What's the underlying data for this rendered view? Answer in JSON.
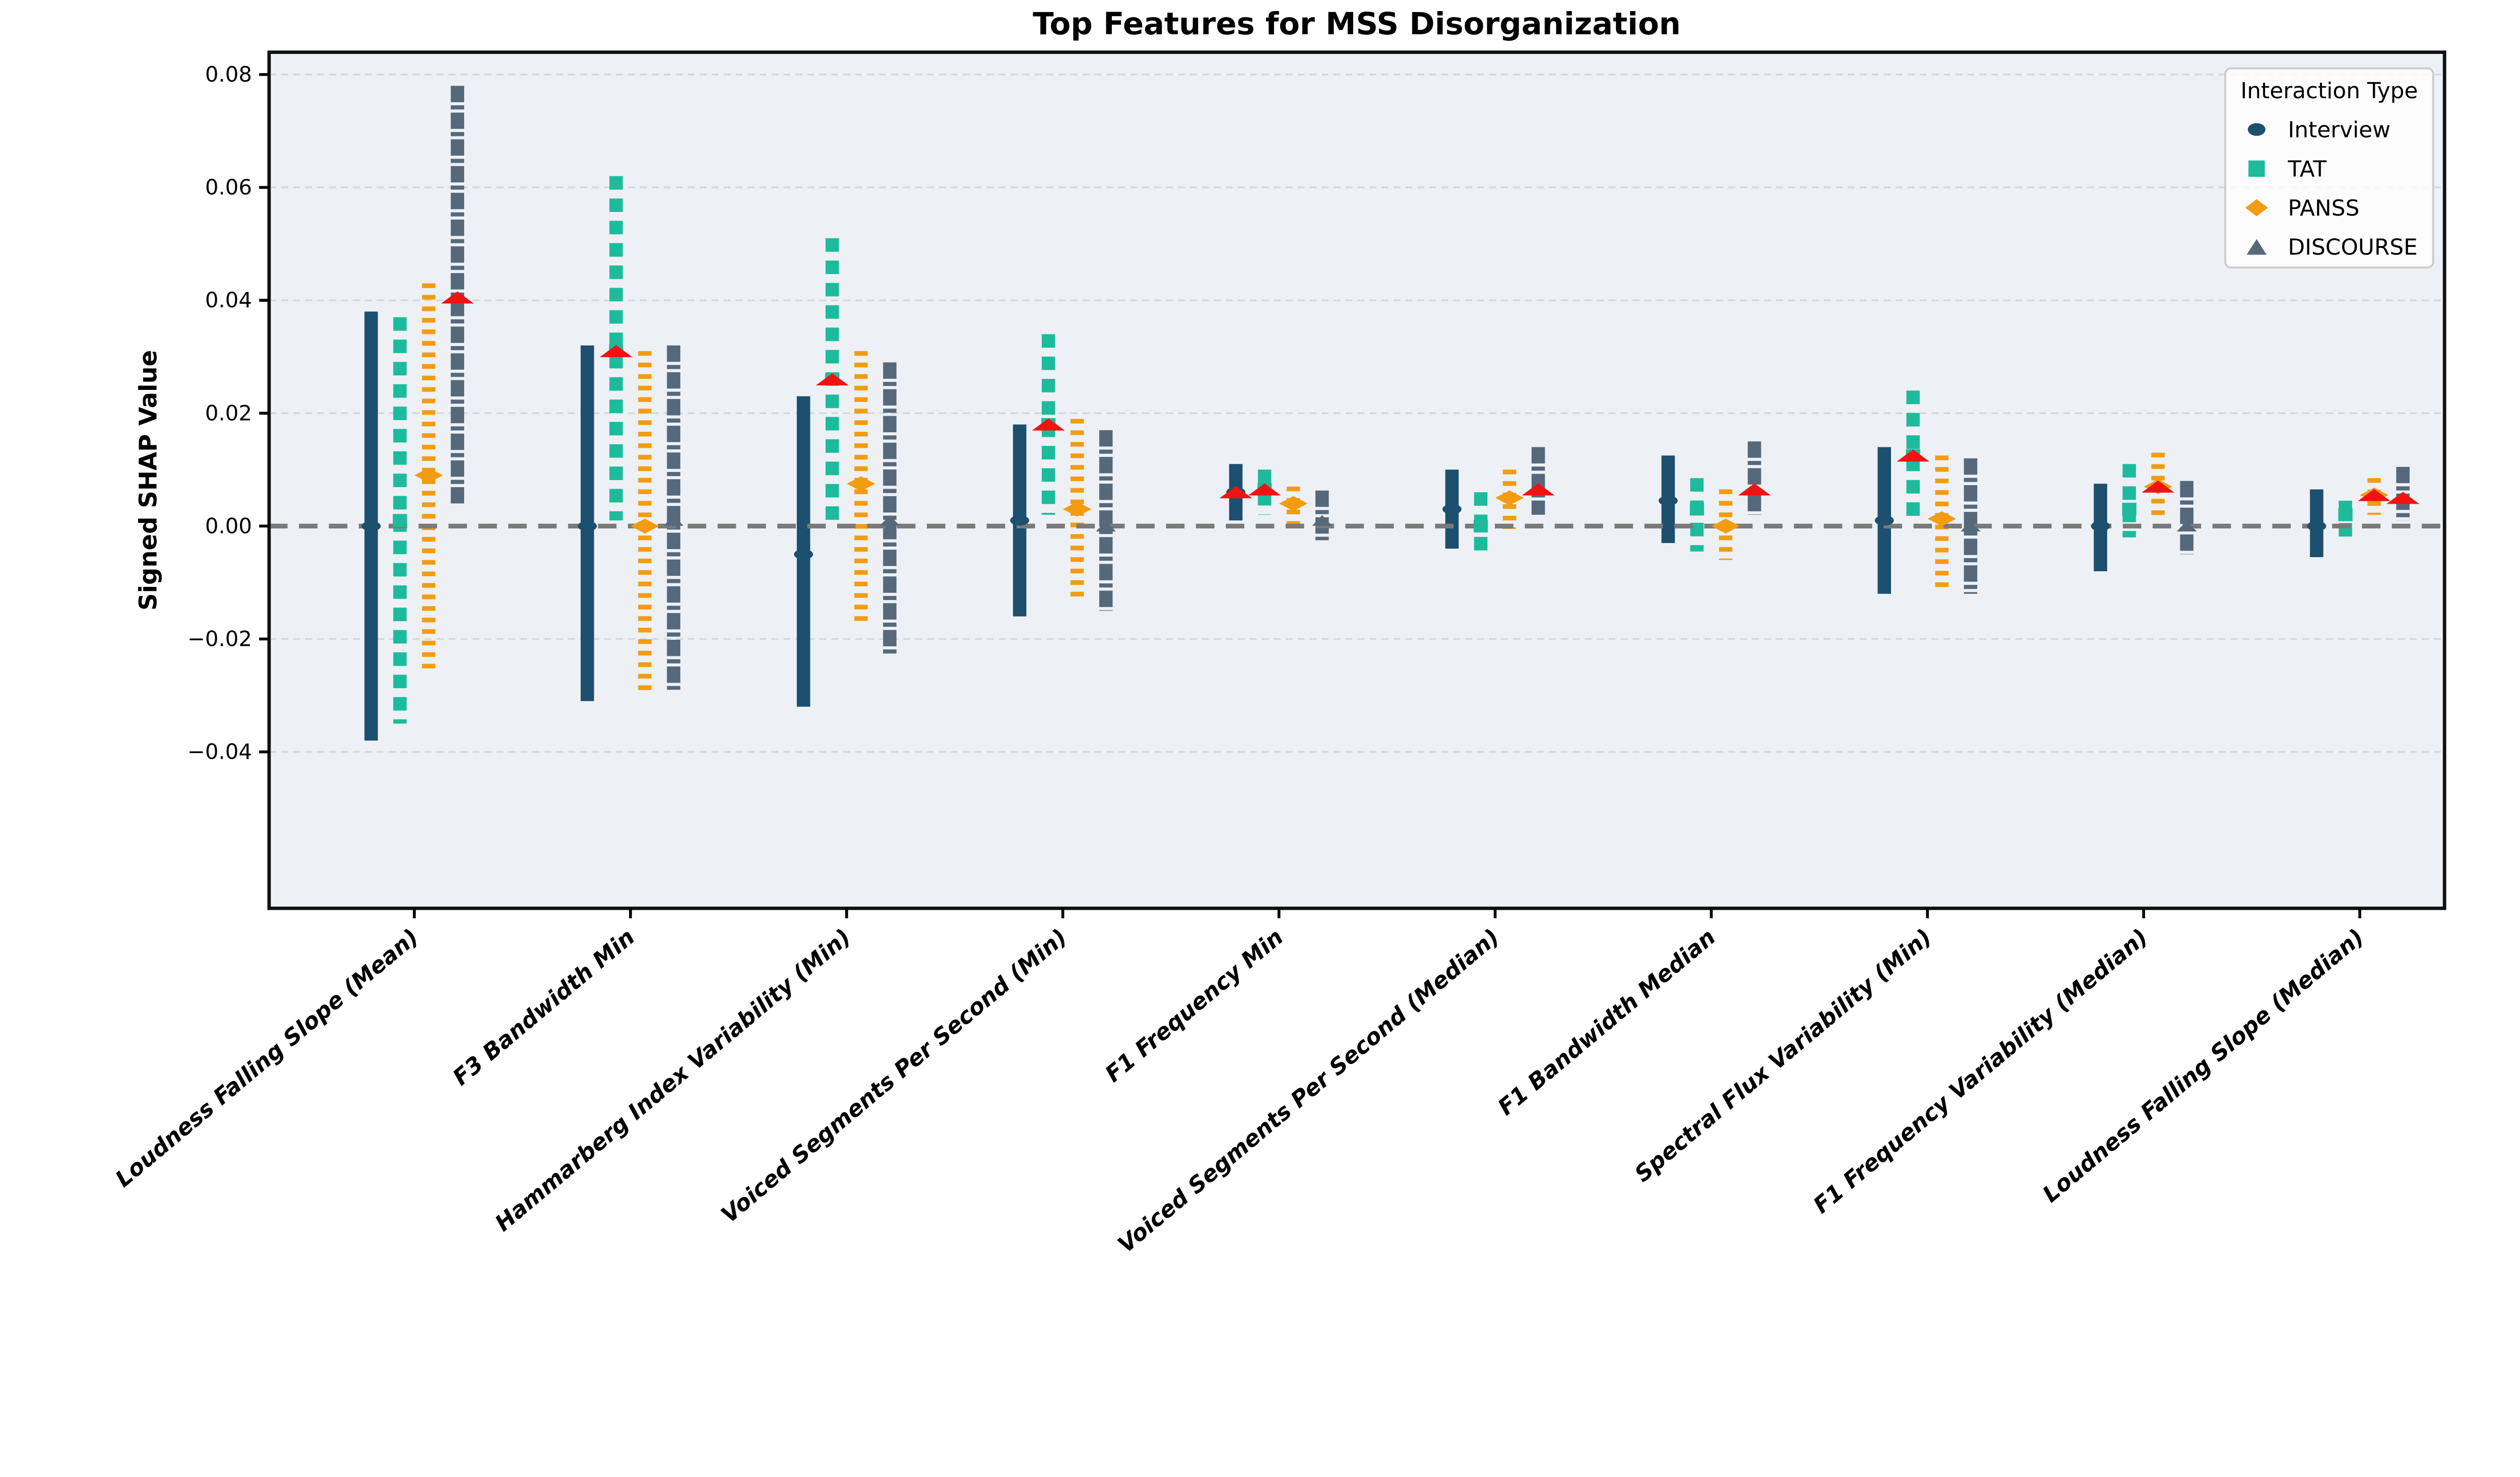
{
  "figure": {
    "title": "Top Features for MSS Disorganization",
    "ylabel": "Signed SHAP Value",
    "plot_background": "#edf1f5",
    "grid_color": "#d3d8dd",
    "zero_line_color": "#7a7a7a",
    "spine_color": "#111111"
  },
  "legend": {
    "title": "Interaction Type",
    "background": "rgba(255,255,255,0.8)",
    "border_color": "#cccccc",
    "entries": [
      {
        "label": "Interview",
        "marker": "circle",
        "color": "#1d4f6e"
      },
      {
        "label": "TAT",
        "marker": "square",
        "color": "#1dbb9c"
      },
      {
        "label": "PANSS",
        "marker": "diamond",
        "color": "#f39c12"
      },
      {
        "label": "DISCOURSE",
        "marker": "triangle",
        "color": "#56697b"
      }
    ]
  },
  "chart_data": {
    "type": "scatter",
    "subtype": "dodged-errorbar",
    "title": "Top Features for MSS Disorganization",
    "xlabel": "",
    "ylabel": "Signed SHAP Value",
    "ylim": [
      -0.0675,
      0.084
    ],
    "yticks": [
      0.08,
      0.06,
      0.04,
      0.02,
      0.0,
      -0.02,
      -0.04
    ],
    "ytick_labels": [
      "0.08",
      "0.06",
      "0.04",
      "0.02",
      "0.00",
      "−0.02",
      "−0.04"
    ],
    "grid": true,
    "zero_line": 0.0,
    "legend_position": "upper right",
    "significant_marker": {
      "shape": "triangle",
      "color": "#f01311",
      "meaning": "significant value (red triangle overlay)"
    },
    "categories": [
      "Loudness Falling Slope (Mean)",
      "F3 Bandwidth Min",
      "Hammarberg Index Variability (Min)",
      "Voiced Segments Per Second (Min)",
      "F1 Frequency Min",
      "Voiced Segments Per Second (Median)",
      "F1 Bandwidth Median",
      "Spectral Flux Variability (Min)",
      "F1 Frequency Variability (Median)",
      "Loudness Falling Slope (Median)"
    ],
    "series": [
      {
        "name": "Interview",
        "color": "#1d4f6e",
        "marker": "circle",
        "line_style": "solid",
        "points": [
          {
            "center": 0.0,
            "lo": -0.038,
            "hi": 0.038,
            "significant": false
          },
          {
            "center": 0.0,
            "lo": -0.031,
            "hi": 0.032,
            "significant": false
          },
          {
            "center": -0.005,
            "lo": -0.032,
            "hi": 0.023,
            "significant": false
          },
          {
            "center": 0.001,
            "lo": -0.016,
            "hi": 0.018,
            "significant": false
          },
          {
            "center": 0.006,
            "lo": 0.001,
            "hi": 0.011,
            "significant": true
          },
          {
            "center": 0.003,
            "lo": -0.004,
            "hi": 0.01,
            "significant": false
          },
          {
            "center": 0.0045,
            "lo": -0.003,
            "hi": 0.0125,
            "significant": false
          },
          {
            "center": 0.001,
            "lo": -0.012,
            "hi": 0.014,
            "significant": false
          },
          {
            "center": 0.0,
            "lo": -0.008,
            "hi": 0.0075,
            "significant": false
          },
          {
            "center": 0.0,
            "lo": -0.0055,
            "hi": 0.0065,
            "significant": false
          }
        ]
      },
      {
        "name": "TAT",
        "color": "#1dbb9c",
        "marker": "square",
        "line_style": "dashed",
        "points": [
          {
            "center": 0.001,
            "lo": -0.035,
            "hi": 0.037,
            "significant": false
          },
          {
            "center": 0.031,
            "lo": 0.001,
            "hi": 0.062,
            "significant": true
          },
          {
            "center": 0.026,
            "lo": 0.0,
            "hi": 0.051,
            "significant": true
          },
          {
            "center": 0.018,
            "lo": 0.002,
            "hi": 0.034,
            "significant": true
          },
          {
            "center": 0.0065,
            "lo": 0.002,
            "hi": 0.01,
            "significant": true
          },
          {
            "center": 0.0,
            "lo": -0.0055,
            "hi": 0.006,
            "significant": false
          },
          {
            "center": 0.003,
            "lo": -0.0045,
            "hi": 0.0085,
            "significant": false
          },
          {
            "center": 0.0125,
            "lo": 0.001,
            "hi": 0.024,
            "significant": true
          },
          {
            "center": 0.003,
            "lo": -0.002,
            "hi": 0.011,
            "significant": false
          },
          {
            "center": 0.002,
            "lo": -0.003,
            "hi": 0.0045,
            "significant": false
          }
        ]
      },
      {
        "name": "PANSS",
        "color": "#f39c12",
        "marker": "diamond",
        "line_style": "dotted",
        "points": [
          {
            "center": 0.009,
            "lo": -0.026,
            "hi": 0.043,
            "significant": false
          },
          {
            "center": 0.0,
            "lo": -0.03,
            "hi": 0.031,
            "significant": false
          },
          {
            "center": 0.0075,
            "lo": -0.018,
            "hi": 0.031,
            "significant": false
          },
          {
            "center": 0.003,
            "lo": -0.013,
            "hi": 0.019,
            "significant": false
          },
          {
            "center": 0.004,
            "lo": -0.001,
            "hi": 0.007,
            "significant": false
          },
          {
            "center": 0.005,
            "lo": -0.0005,
            "hi": 0.01,
            "significant": false
          },
          {
            "center": 0.0,
            "lo": -0.006,
            "hi": 0.0065,
            "significant": false
          },
          {
            "center": 0.0013,
            "lo": -0.011,
            "hi": 0.0125,
            "significant": false
          },
          {
            "center": 0.007,
            "lo": 0.001,
            "hi": 0.013,
            "significant": true
          },
          {
            "center": 0.0055,
            "lo": 0.002,
            "hi": 0.0085,
            "significant": true
          }
        ]
      },
      {
        "name": "DISCOURSE",
        "color": "#56697b",
        "marker": "triangle",
        "line_style": "dashdot",
        "points": [
          {
            "center": 0.0405,
            "lo": 0.004,
            "hi": 0.078,
            "significant": true
          },
          {
            "center": 0.001,
            "lo": -0.029,
            "hi": 0.032,
            "significant": false
          },
          {
            "center": 0.001,
            "lo": -0.023,
            "hi": 0.029,
            "significant": false
          },
          {
            "center": 0.0,
            "lo": -0.015,
            "hi": 0.017,
            "significant": false
          },
          {
            "center": 0.001,
            "lo": -0.0025,
            "hi": 0.0063,
            "significant": false
          },
          {
            "center": 0.0065,
            "lo": 0.002,
            "hi": 0.014,
            "significant": true
          },
          {
            "center": 0.0065,
            "lo": 0.002,
            "hi": 0.015,
            "significant": true
          },
          {
            "center": 0.0,
            "lo": -0.012,
            "hi": 0.012,
            "significant": false
          },
          {
            "center": 0.0,
            "lo": -0.005,
            "hi": 0.008,
            "significant": false
          },
          {
            "center": 0.005,
            "lo": 0.001,
            "hi": 0.0105,
            "significant": true
          }
        ]
      }
    ]
  }
}
